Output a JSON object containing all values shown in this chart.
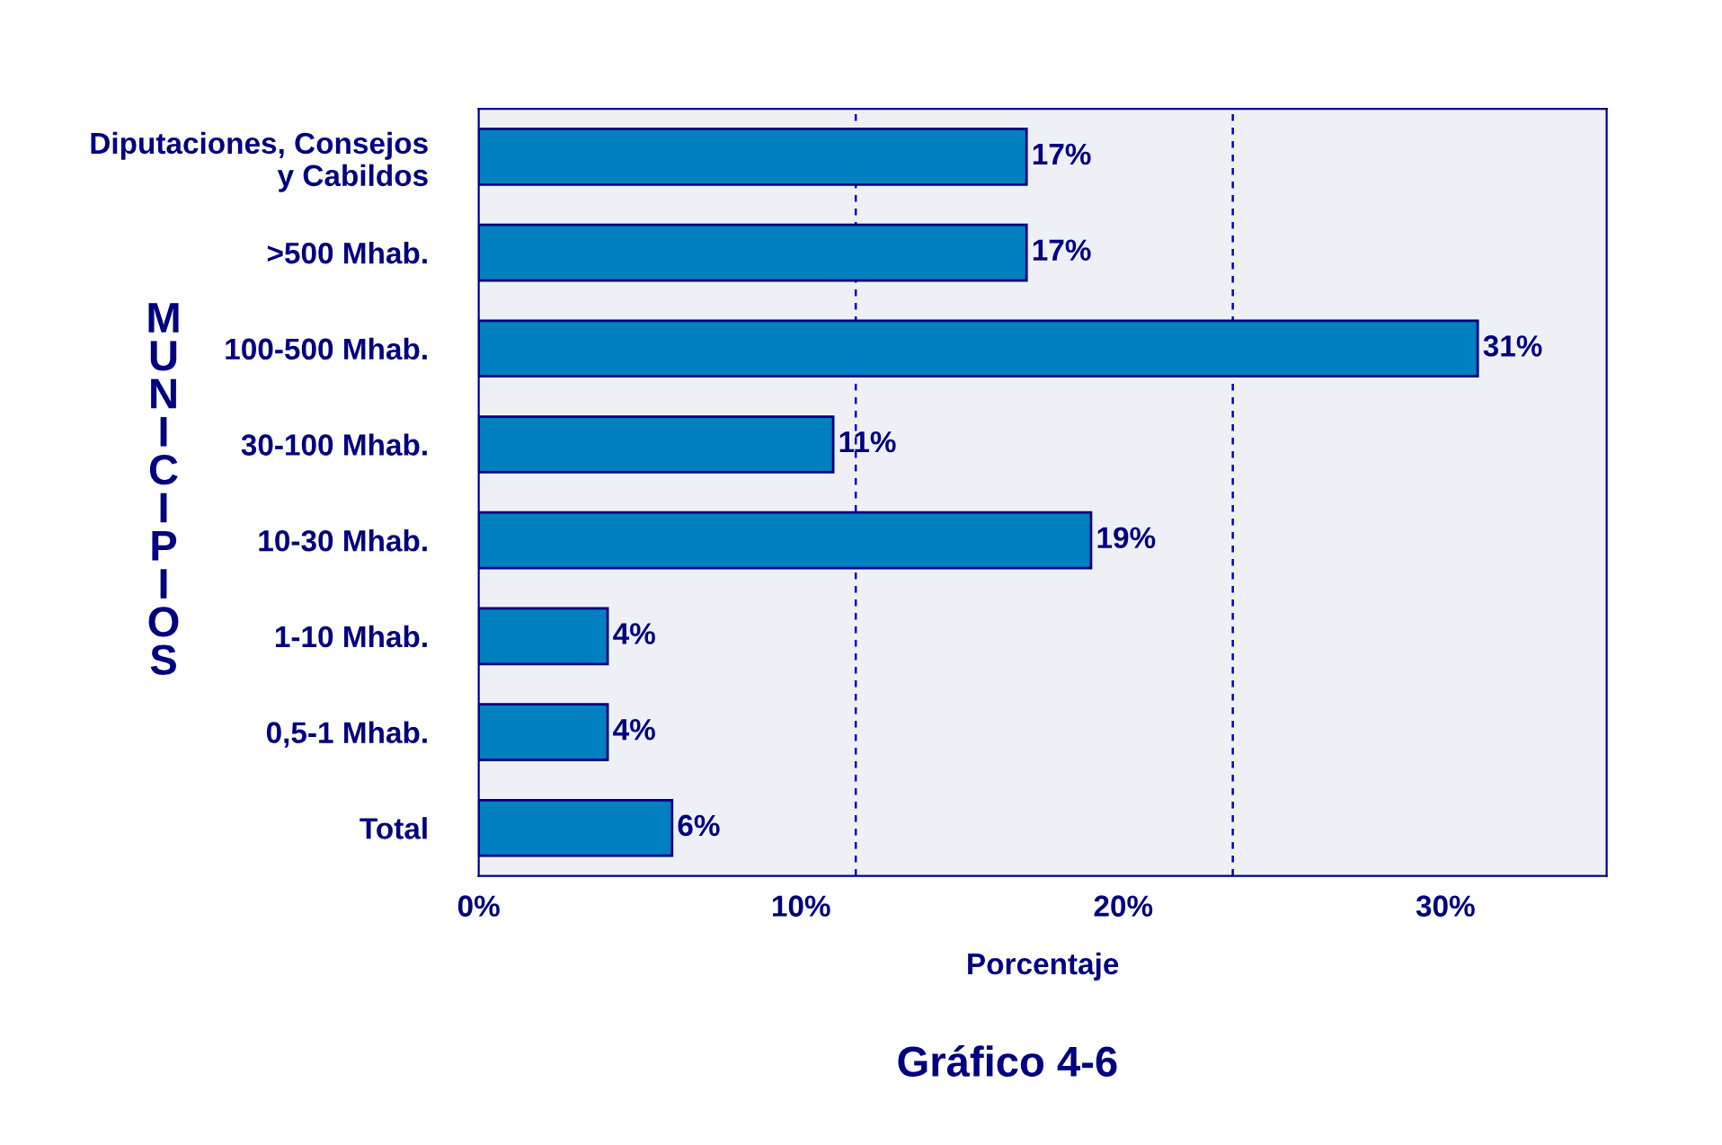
{
  "chart_data": {
    "type": "bar",
    "orientation": "horizontal",
    "title": "Gráfico 4-6",
    "xlabel": "Porcentaje",
    "ylabel": "MUNICIPIOS",
    "categories": [
      "Diputaciones, Consejos\ny Cabildos",
      ">500 Mhab.",
      "100-500 Mhab.",
      "30-100 Mhab.",
      "10-30 Mhab.",
      "1-10 Mhab.",
      "0,5-1 Mhab.",
      "Total"
    ],
    "values": [
      17,
      17,
      31,
      11,
      19,
      4,
      4,
      6
    ],
    "value_labels": [
      "17%",
      "17%",
      "31%",
      "11%",
      "19%",
      "4%",
      "4%",
      "6%"
    ],
    "color": "#0080c0",
    "xlim": [
      0,
      35
    ],
    "xticks": [
      {
        "value": 0,
        "label": "0%"
      },
      {
        "value": 10,
        "label": "10%"
      },
      {
        "value": 20,
        "label": "20%"
      },
      {
        "value": 30,
        "label": "30%"
      }
    ],
    "ref_lines": [
      {
        "axis": "x",
        "value": 11.7,
        "label": null,
        "color": "#0000cc",
        "line_style": "dashed"
      },
      {
        "axis": "x",
        "value": 23.4,
        "label": null,
        "color": "#0000cc",
        "line_style": "dashed"
      }
    ],
    "grid": false,
    "legend": false
  }
}
